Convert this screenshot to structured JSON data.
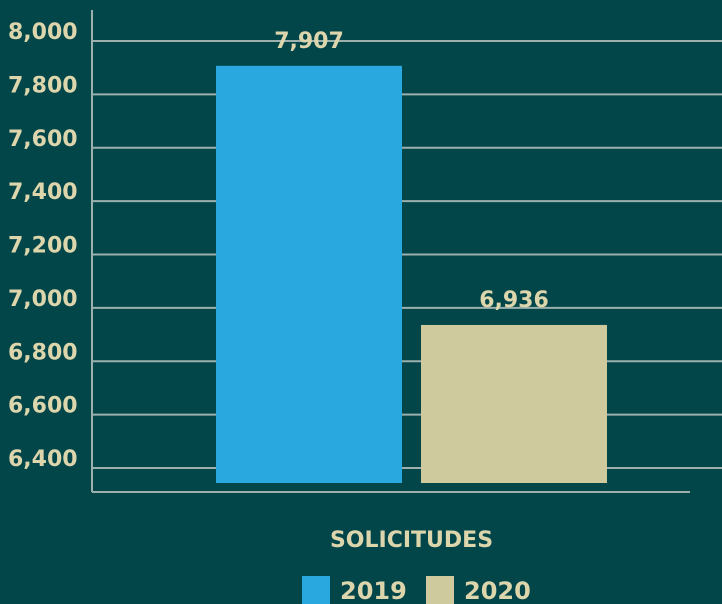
{
  "chart_data": {
    "type": "bar",
    "categories": [
      "SOLICITUDES"
    ],
    "series": [
      {
        "name": "2019",
        "color": "#29a8e0",
        "values": [
          7907
        ],
        "value_labels": [
          "7,907"
        ]
      },
      {
        "name": "2020",
        "color": "#cfc99e",
        "values": [
          6936
        ],
        "value_labels": [
          "6,936"
        ]
      }
    ],
    "ylim": [
      6400,
      8000
    ],
    "yticks": [
      {
        "value": 6400,
        "label": "6,400"
      },
      {
        "value": 6600,
        "label": "6,600"
      },
      {
        "value": 6800,
        "label": "6,800"
      },
      {
        "value": 7000,
        "label": "7,000"
      },
      {
        "value": 7200,
        "label": "7,200"
      },
      {
        "value": 7400,
        "label": "7,400"
      },
      {
        "value": 7600,
        "label": "7,600"
      },
      {
        "value": 7800,
        "label": "7,800"
      },
      {
        "value": 8000,
        "label": "8,000"
      }
    ],
    "grid": true
  }
}
